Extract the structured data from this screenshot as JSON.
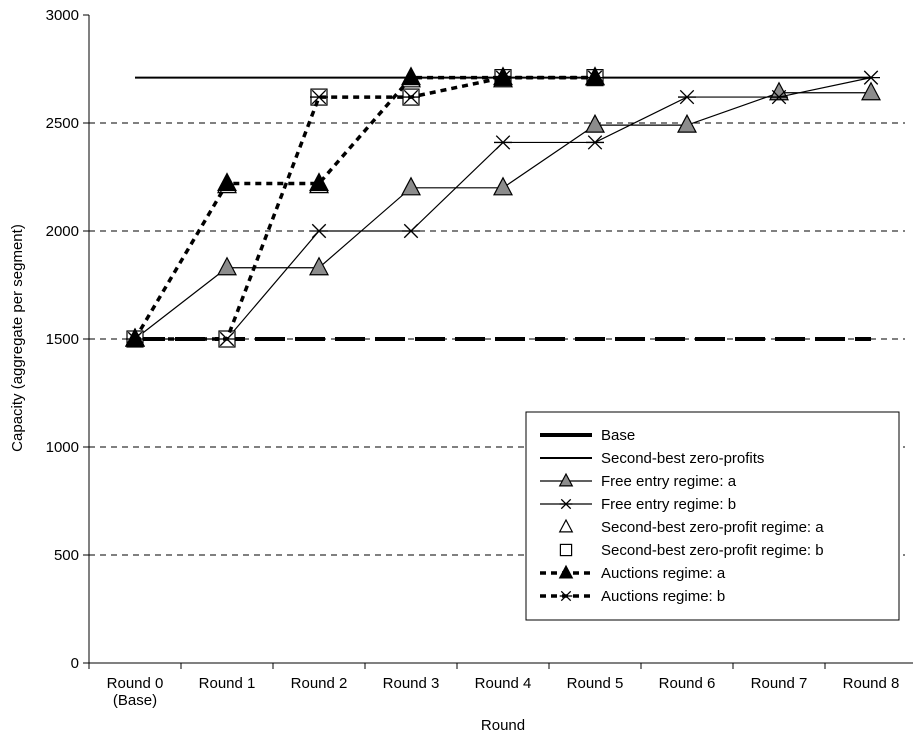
{
  "chart_data": {
    "type": "line",
    "title": "",
    "xlabel": "Round",
    "ylabel": "Capacity (aggregate per segment)",
    "ylim": [
      0,
      3000
    ],
    "yticks": [
      0,
      500,
      1000,
      1500,
      2000,
      2500,
      3000
    ],
    "categories": [
      [
        "Round 0",
        "(Base)"
      ],
      [
        "Round 1"
      ],
      [
        "Round 2"
      ],
      [
        "Round 3"
      ],
      [
        "Round 4"
      ],
      [
        "Round 5"
      ],
      [
        "Round 6"
      ],
      [
        "Round 7"
      ],
      [
        "Round 8"
      ]
    ],
    "grid": "horizontal dashed",
    "legend_position": "lower-right",
    "series": [
      {
        "name": "Base",
        "style": "thick-dash",
        "marker": "none",
        "x": [
          0,
          8
        ],
        "values": [
          1500,
          1500
        ]
      },
      {
        "name": "Second-best zero-profits",
        "style": "solid",
        "marker": "none",
        "x": [
          0,
          8
        ],
        "values": [
          2710,
          2710
        ]
      },
      {
        "name": "Free entry regime: a",
        "style": "thin-step",
        "marker": "triangle-gray",
        "x": [
          0,
          1,
          2,
          3,
          4,
          5,
          6,
          7,
          8
        ],
        "values": [
          1500,
          1830,
          1830,
          2200,
          2200,
          2490,
          2490,
          2640,
          2640
        ]
      },
      {
        "name": "Free entry regime: b",
        "style": "thin-step",
        "marker": "asterisk",
        "x": [
          0,
          1,
          2,
          3,
          4,
          5,
          6,
          7,
          8
        ],
        "values": [
          1500,
          1500,
          2000,
          2000,
          2410,
          2410,
          2620,
          2620,
          2710
        ]
      },
      {
        "name": "Second-best zero-profit regime: a",
        "style": "none",
        "marker": "triangle-open",
        "x": [
          0,
          1,
          2,
          3,
          4,
          5
        ],
        "values": [
          1500,
          2210,
          2210,
          2700,
          2700,
          2710
        ]
      },
      {
        "name": "Second-best zero-profit regime: b",
        "style": "none",
        "marker": "square-open",
        "x": [
          0,
          1,
          2,
          3,
          4,
          5
        ],
        "values": [
          1500,
          1500,
          2620,
          2620,
          2710,
          2710
        ]
      },
      {
        "name": "Auctions regime: a",
        "style": "dotted",
        "marker": "triangle-black",
        "x": [
          0,
          1,
          2,
          3,
          4,
          5
        ],
        "values": [
          1500,
          2220,
          2220,
          2710,
          2710,
          2710
        ]
      },
      {
        "name": "Auctions regime: b",
        "style": "dotted",
        "marker": "asterisk",
        "x": [
          0,
          1,
          2,
          3,
          4,
          5
        ],
        "values": [
          1500,
          1500,
          2620,
          2620,
          2710,
          2710
        ]
      }
    ]
  }
}
